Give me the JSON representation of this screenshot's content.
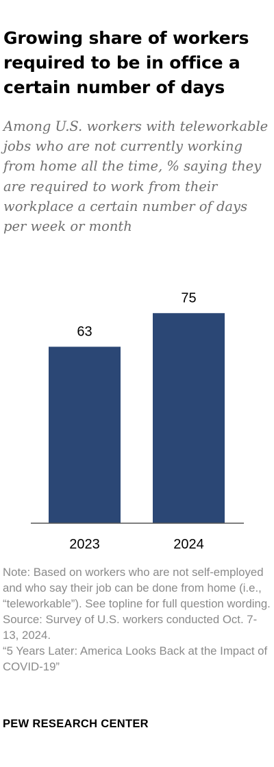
{
  "title": "Growing share of workers required to be in office a certain number of days",
  "subtitle": "Among U.S. workers with teleworkable jobs who are not currently working from home all the time, % saying they are required to work from their workplace a certain number of days per week or month",
  "notes": {
    "note": "Note: Based on workers who are not self-employed and who say their job can be done from home (i.e., “teleworkable”). See topline for full question wording.",
    "source": "Source: Survey of U.S. workers conducted Oct. 7-13, 2024.",
    "report": "“5 Years Later: America Looks Back at the Impact of COVID-19”"
  },
  "brand": "PEW RESEARCH CENTER",
  "colors": {
    "bar": "#2b4775",
    "baseline": "#555555"
  },
  "chart_data": {
    "type": "bar",
    "categories": [
      "2023",
      "2024"
    ],
    "values": [
      63,
      75
    ],
    "title": "",
    "xlabel": "",
    "ylabel": "",
    "ylim": [
      0,
      100
    ],
    "grid": false,
    "data_labels": true
  }
}
